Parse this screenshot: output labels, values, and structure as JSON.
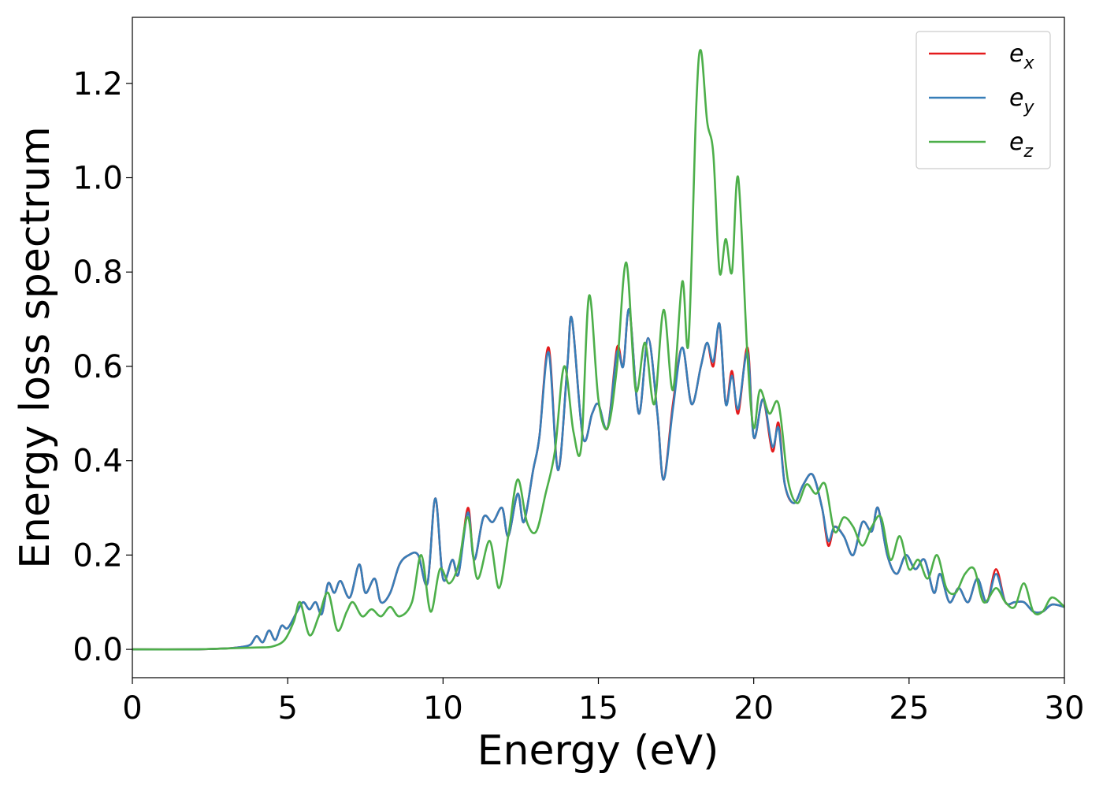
{
  "chart_data": {
    "type": "line",
    "title": "",
    "xlabel": "Energy (eV)",
    "ylabel": "Energy loss spectrum",
    "xlim": [
      0,
      30
    ],
    "ylim": [
      -0.06,
      1.34
    ],
    "xticks": [
      0,
      5,
      10,
      15,
      20,
      25,
      30
    ],
    "xtick_labels": [
      "0",
      "5",
      "10",
      "15",
      "20",
      "25",
      "30"
    ],
    "yticks": [
      0.0,
      0.2,
      0.4,
      0.6,
      0.8,
      1.0,
      1.2
    ],
    "ytick_labels": [
      "0.0",
      "0.2",
      "0.4",
      "0.6",
      "0.8",
      "1.0",
      "1.2"
    ],
    "grid": false,
    "legend_position": "top-right",
    "series": [
      {
        "name": "e_x",
        "label_main": "e",
        "label_sub": "x",
        "color": "#e41a1c",
        "x": [
          0,
          2,
          3,
          3.5,
          3.8,
          4.0,
          4.2,
          4.4,
          4.6,
          4.8,
          5.0,
          5.3,
          5.5,
          5.7,
          5.9,
          6.1,
          6.3,
          6.5,
          6.7,
          7.0,
          7.3,
          7.5,
          7.8,
          8.0,
          8.3,
          8.6,
          8.9,
          9.2,
          9.5,
          9.75,
          10.0,
          10.3,
          10.5,
          10.8,
          11.0,
          11.3,
          11.6,
          11.9,
          12.1,
          12.4,
          12.6,
          12.9,
          13.1,
          13.4,
          13.7,
          14.0,
          14.15,
          14.5,
          14.8,
          15.0,
          15.3,
          15.6,
          15.8,
          16.0,
          16.3,
          16.6,
          16.9,
          17.1,
          17.4,
          17.7,
          18.0,
          18.3,
          18.5,
          18.7,
          18.9,
          19.1,
          19.3,
          19.5,
          19.8,
          20.0,
          20.3,
          20.6,
          20.8,
          21.0,
          21.3,
          21.6,
          21.9,
          22.2,
          22.4,
          22.6,
          22.9,
          23.2,
          23.5,
          23.8,
          24.0,
          24.3,
          24.6,
          24.9,
          25.2,
          25.5,
          25.8,
          26.0,
          26.3,
          26.6,
          26.9,
          27.2,
          27.5,
          27.8,
          28.1,
          28.4,
          28.7,
          29.0,
          29.3,
          29.6,
          30
        ],
        "y": [
          0.0,
          0.0,
          0.002,
          0.005,
          0.01,
          0.028,
          0.015,
          0.04,
          0.02,
          0.05,
          0.045,
          0.08,
          0.1,
          0.085,
          0.1,
          0.075,
          0.14,
          0.12,
          0.145,
          0.11,
          0.18,
          0.12,
          0.15,
          0.1,
          0.12,
          0.18,
          0.2,
          0.2,
          0.14,
          0.32,
          0.15,
          0.19,
          0.16,
          0.3,
          0.19,
          0.28,
          0.27,
          0.3,
          0.24,
          0.33,
          0.27,
          0.38,
          0.45,
          0.64,
          0.38,
          0.6,
          0.7,
          0.45,
          0.5,
          0.52,
          0.47,
          0.64,
          0.6,
          0.72,
          0.5,
          0.66,
          0.5,
          0.36,
          0.52,
          0.64,
          0.52,
          0.6,
          0.65,
          0.6,
          0.69,
          0.52,
          0.59,
          0.5,
          0.64,
          0.45,
          0.53,
          0.42,
          0.48,
          0.35,
          0.31,
          0.35,
          0.37,
          0.3,
          0.22,
          0.26,
          0.24,
          0.2,
          0.27,
          0.25,
          0.3,
          0.2,
          0.16,
          0.2,
          0.17,
          0.19,
          0.12,
          0.16,
          0.1,
          0.13,
          0.1,
          0.15,
          0.1,
          0.17,
          0.1,
          0.1,
          0.1,
          0.08,
          0.08,
          0.095,
          0.09
        ]
      },
      {
        "name": "e_y",
        "label_main": "e",
        "label_sub": "y",
        "color": "#377eb8",
        "x": [
          0,
          2,
          3,
          3.5,
          3.8,
          4.0,
          4.2,
          4.4,
          4.6,
          4.8,
          5.0,
          5.3,
          5.5,
          5.7,
          5.9,
          6.1,
          6.3,
          6.5,
          6.7,
          7.0,
          7.3,
          7.5,
          7.8,
          8.0,
          8.3,
          8.6,
          8.9,
          9.2,
          9.5,
          9.75,
          10.0,
          10.3,
          10.5,
          10.8,
          11.0,
          11.3,
          11.6,
          11.9,
          12.1,
          12.4,
          12.6,
          12.9,
          13.1,
          13.4,
          13.7,
          14.0,
          14.15,
          14.5,
          14.8,
          15.0,
          15.3,
          15.6,
          15.8,
          16.0,
          16.3,
          16.6,
          16.9,
          17.1,
          17.4,
          17.7,
          18.0,
          18.3,
          18.5,
          18.7,
          18.9,
          19.1,
          19.3,
          19.5,
          19.8,
          20.0,
          20.3,
          20.6,
          20.8,
          21.0,
          21.3,
          21.6,
          21.9,
          22.2,
          22.4,
          22.6,
          22.9,
          23.2,
          23.5,
          23.8,
          24.0,
          24.3,
          24.6,
          24.9,
          25.2,
          25.5,
          25.8,
          26.0,
          26.3,
          26.6,
          26.9,
          27.2,
          27.5,
          27.8,
          28.1,
          28.4,
          28.7,
          29.0,
          29.3,
          29.6,
          30
        ],
        "y": [
          0.0,
          0.0,
          0.002,
          0.005,
          0.01,
          0.028,
          0.015,
          0.04,
          0.02,
          0.05,
          0.045,
          0.08,
          0.1,
          0.085,
          0.1,
          0.075,
          0.14,
          0.12,
          0.145,
          0.11,
          0.18,
          0.12,
          0.15,
          0.1,
          0.12,
          0.18,
          0.2,
          0.2,
          0.14,
          0.32,
          0.15,
          0.19,
          0.16,
          0.29,
          0.19,
          0.28,
          0.27,
          0.3,
          0.24,
          0.33,
          0.27,
          0.38,
          0.45,
          0.63,
          0.38,
          0.6,
          0.7,
          0.45,
          0.5,
          0.52,
          0.47,
          0.63,
          0.6,
          0.72,
          0.5,
          0.66,
          0.5,
          0.36,
          0.51,
          0.64,
          0.52,
          0.6,
          0.65,
          0.61,
          0.69,
          0.52,
          0.58,
          0.51,
          0.63,
          0.45,
          0.53,
          0.43,
          0.47,
          0.35,
          0.31,
          0.35,
          0.37,
          0.3,
          0.23,
          0.26,
          0.24,
          0.2,
          0.27,
          0.25,
          0.3,
          0.2,
          0.16,
          0.2,
          0.17,
          0.19,
          0.12,
          0.16,
          0.1,
          0.13,
          0.1,
          0.15,
          0.1,
          0.16,
          0.1,
          0.1,
          0.1,
          0.08,
          0.08,
          0.095,
          0.09
        ]
      },
      {
        "name": "e_z",
        "label_main": "e",
        "label_sub": "z",
        "color": "#4daf4a",
        "x": [
          0,
          2,
          3,
          4,
          4.5,
          4.9,
          5.2,
          5.4,
          5.7,
          6.0,
          6.3,
          6.6,
          6.9,
          7.1,
          7.4,
          7.7,
          8.0,
          8.3,
          8.6,
          9.0,
          9.3,
          9.6,
          9.9,
          10.2,
          10.5,
          10.8,
          11.1,
          11.5,
          11.8,
          12.1,
          12.4,
          12.7,
          13.0,
          13.3,
          13.6,
          13.9,
          14.2,
          14.45,
          14.7,
          15.0,
          15.3,
          15.6,
          15.9,
          16.2,
          16.5,
          16.8,
          17.1,
          17.4,
          17.7,
          17.9,
          18.15,
          18.3,
          18.5,
          18.7,
          18.9,
          19.1,
          19.3,
          19.5,
          19.8,
          20.0,
          20.2,
          20.5,
          20.8,
          21.1,
          21.4,
          21.7,
          22.0,
          22.3,
          22.6,
          22.9,
          23.2,
          23.5,
          23.8,
          24.1,
          24.4,
          24.7,
          25.0,
          25.3,
          25.6,
          25.9,
          26.2,
          26.5,
          26.8,
          27.1,
          27.4,
          27.8,
          28.1,
          28.4,
          28.7,
          29.0,
          29.3,
          29.6,
          30
        ],
        "y": [
          0.0,
          0.0,
          0.002,
          0.004,
          0.006,
          0.02,
          0.06,
          0.1,
          0.03,
          0.07,
          0.12,
          0.04,
          0.08,
          0.1,
          0.07,
          0.085,
          0.07,
          0.09,
          0.07,
          0.1,
          0.2,
          0.08,
          0.17,
          0.14,
          0.18,
          0.28,
          0.15,
          0.23,
          0.13,
          0.24,
          0.36,
          0.27,
          0.25,
          0.33,
          0.42,
          0.6,
          0.46,
          0.43,
          0.75,
          0.53,
          0.47,
          0.6,
          0.82,
          0.55,
          0.65,
          0.52,
          0.72,
          0.55,
          0.78,
          0.65,
          1.15,
          1.27,
          1.12,
          1.05,
          0.8,
          0.87,
          0.8,
          1.0,
          0.62,
          0.47,
          0.55,
          0.5,
          0.52,
          0.36,
          0.31,
          0.35,
          0.33,
          0.35,
          0.25,
          0.28,
          0.26,
          0.22,
          0.26,
          0.28,
          0.19,
          0.24,
          0.17,
          0.19,
          0.15,
          0.2,
          0.13,
          0.12,
          0.16,
          0.17,
          0.1,
          0.13,
          0.1,
          0.09,
          0.14,
          0.08,
          0.08,
          0.11,
          0.09
        ]
      }
    ]
  }
}
